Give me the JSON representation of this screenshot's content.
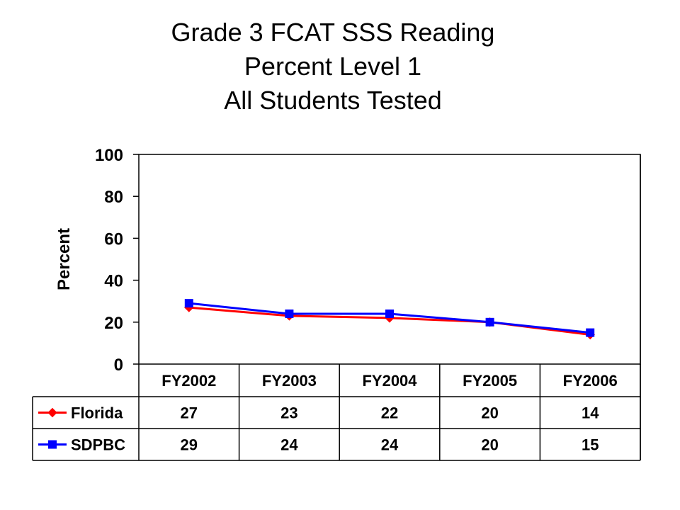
{
  "chart_data": {
    "type": "line",
    "title": [
      "Grade 3 FCAT SSS Reading",
      "Percent Level 1",
      "All Students Tested"
    ],
    "ylabel": "Percent",
    "xlabel": "",
    "categories": [
      "FY2002",
      "FY2003",
      "FY2004",
      "FY2005",
      "FY2006"
    ],
    "ylim": [
      0,
      100
    ],
    "yticks": [
      0,
      20,
      40,
      60,
      80,
      100
    ],
    "grid": false,
    "legend": "data-table-left",
    "series": [
      {
        "name": "Florida",
        "values": [
          27,
          23,
          22,
          20,
          14
        ],
        "color": "#ff0000",
        "marker": "diamond"
      },
      {
        "name": "SDPBC",
        "values": [
          29,
          24,
          24,
          20,
          15
        ],
        "color": "#0000ff",
        "marker": "square"
      }
    ]
  }
}
